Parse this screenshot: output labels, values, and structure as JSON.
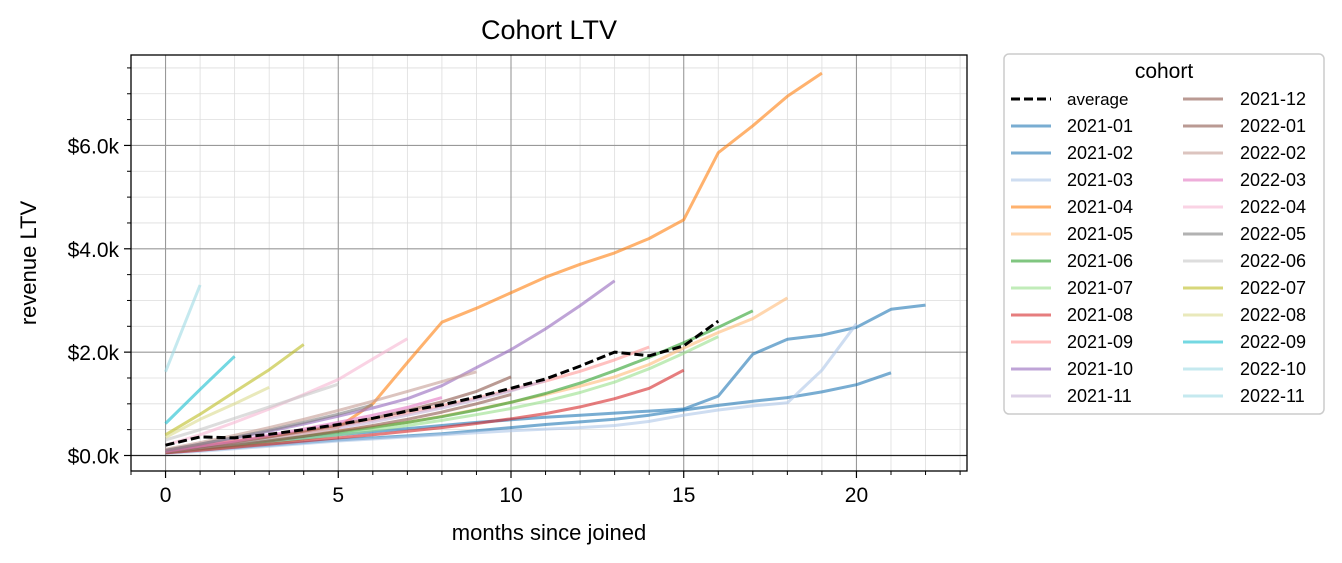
{
  "chart_data": {
    "type": "line",
    "title": "Cohort LTV",
    "xlabel": "months since joined",
    "ylabel": "revenue LTV",
    "xlim": [
      -1,
      23.2
    ],
    "ylim": [
      -300,
      7750
    ],
    "xticks": [
      0,
      5,
      10,
      15,
      20
    ],
    "xtick_labels": [
      "0",
      "5",
      "10",
      "15",
      "20"
    ],
    "yticks": [
      0,
      2000,
      4000,
      6000
    ],
    "ytick_labels": [
      "$0.0k",
      "$2.0k",
      "$4.0k",
      "$6.0k"
    ],
    "grid": true,
    "legend_title": "cohort",
    "legend_position": "outside-right",
    "series": [
      {
        "name": "average",
        "color": "#000000",
        "dashed": true,
        "opacity": 1,
        "x": [
          0,
          1,
          2,
          3,
          4,
          5,
          6,
          7,
          8,
          9,
          10,
          11,
          12,
          13,
          14,
          15,
          16
        ],
        "y": [
          200,
          360,
          340,
          410,
          500,
          600,
          720,
          860,
          980,
          1130,
          1300,
          1480,
          1730,
          2000,
          1930,
          2120,
          2600
        ]
      },
      {
        "name": "2021-01",
        "color": "#1f77b4",
        "opacity": 0.6,
        "x": [
          0,
          1,
          2,
          3,
          4,
          5,
          6,
          7,
          8,
          9,
          10,
          11,
          12,
          13,
          14,
          15,
          16,
          17,
          18,
          19,
          20,
          21,
          22
        ],
        "y": [
          50,
          120,
          190,
          260,
          330,
          400,
          460,
          520,
          580,
          640,
          690,
          740,
          780,
          820,
          860,
          900,
          1150,
          1960,
          2250,
          2330,
          2480,
          2830,
          2910
        ]
      },
      {
        "name": "2021-02",
        "color": "#1f77b4",
        "opacity": 0.6,
        "x": [
          0,
          1,
          2,
          3,
          4,
          5,
          6,
          7,
          8,
          9,
          10,
          11,
          12,
          13,
          14,
          15,
          16,
          17,
          18,
          19,
          20,
          21
        ],
        "y": [
          50,
          100,
          150,
          200,
          250,
          300,
          340,
          380,
          420,
          480,
          540,
          600,
          650,
          700,
          780,
          880,
          970,
          1050,
          1120,
          1230,
          1370,
          1600
        ]
      },
      {
        "name": "2021-03",
        "color": "#aec7e8",
        "opacity": 0.6,
        "x": [
          0,
          1,
          2,
          3,
          4,
          5,
          6,
          7,
          8,
          9,
          10,
          11,
          12,
          13,
          14,
          15,
          16,
          17,
          18,
          19,
          20
        ],
        "y": [
          40,
          80,
          130,
          180,
          230,
          280,
          320,
          360,
          400,
          440,
          480,
          510,
          540,
          580,
          660,
          780,
          880,
          960,
          1020,
          1650,
          2550
        ]
      },
      {
        "name": "2021-04",
        "color": "#ff7f0e",
        "opacity": 0.6,
        "x": [
          0,
          1,
          2,
          3,
          4,
          5,
          6,
          7,
          8,
          9,
          10,
          11,
          12,
          13,
          14,
          15,
          16,
          17,
          18,
          19
        ],
        "y": [
          100,
          200,
          280,
          360,
          450,
          550,
          1000,
          1800,
          2580,
          2850,
          3150,
          3450,
          3700,
          3920,
          4200,
          4560,
          5860,
          6380,
          6950,
          7400
        ]
      },
      {
        "name": "2021-05",
        "color": "#ffbb78",
        "opacity": 0.6,
        "x": [
          0,
          1,
          2,
          3,
          4,
          5,
          6,
          7,
          8,
          9,
          10,
          11,
          12,
          13,
          14,
          15,
          16,
          17,
          18
        ],
        "y": [
          80,
          160,
          240,
          320,
          400,
          480,
          560,
          640,
          760,
          890,
          1030,
          1180,
          1340,
          1520,
          1760,
          2080,
          2380,
          2650,
          3050
        ]
      },
      {
        "name": "2021-06",
        "color": "#2ca02c",
        "opacity": 0.6,
        "x": [
          0,
          1,
          2,
          3,
          4,
          5,
          6,
          7,
          8,
          9,
          10,
          11,
          12,
          13,
          14,
          15,
          16,
          17
        ],
        "y": [
          70,
          140,
          210,
          290,
          370,
          450,
          540,
          640,
          750,
          880,
          1030,
          1200,
          1400,
          1640,
          1900,
          2180,
          2480,
          2800
        ]
      },
      {
        "name": "2021-07",
        "color": "#98df8a",
        "opacity": 0.6,
        "x": [
          0,
          1,
          2,
          3,
          4,
          5,
          6,
          7,
          8,
          9,
          10,
          11,
          12,
          13,
          14,
          15,
          16
        ],
        "y": [
          60,
          120,
          180,
          250,
          320,
          400,
          490,
          580,
          680,
          790,
          910,
          1050,
          1220,
          1420,
          1680,
          1980,
          2300
        ]
      },
      {
        "name": "2021-08",
        "color": "#d62728",
        "opacity": 0.6,
        "x": [
          0,
          1,
          2,
          3,
          4,
          5,
          6,
          7,
          8,
          9,
          10,
          11,
          12,
          13,
          14,
          15
        ],
        "y": [
          50,
          100,
          160,
          220,
          280,
          340,
          400,
          470,
          540,
          620,
          710,
          810,
          940,
          1100,
          1300,
          1650
        ]
      },
      {
        "name": "2021-09",
        "color": "#ff9896",
        "opacity": 0.6,
        "x": [
          0,
          1,
          2,
          3,
          4,
          5,
          6,
          7,
          8,
          9,
          10,
          11,
          12,
          13,
          14
        ],
        "y": [
          80,
          170,
          260,
          360,
          460,
          570,
          690,
          820,
          960,
          1110,
          1270,
          1440,
          1630,
          1850,
          2100
        ]
      },
      {
        "name": "2021-10",
        "color": "#9467bd",
        "opacity": 0.6,
        "x": [
          0,
          1,
          2,
          3,
          4,
          5,
          6,
          7,
          8,
          9,
          10,
          11,
          12,
          13
        ],
        "y": [
          100,
          220,
          340,
          470,
          610,
          760,
          920,
          1100,
          1350,
          1700,
          2050,
          2450,
          2900,
          3380
        ]
      },
      {
        "name": "2021-11",
        "color": "#c5b0d5",
        "opacity": 0.6,
        "x": [
          0,
          1,
          2,
          3,
          4,
          5,
          6,
          7,
          8,
          9,
          10,
          11
        ],
        "y": [
          70,
          150,
          230,
          320,
          420,
          530,
          650,
          780,
          920,
          1080,
          1250,
          1450
        ]
      },
      {
        "name": "2021-12",
        "color": "#8c564b",
        "opacity": 0.6,
        "x": [
          0,
          1,
          2,
          3,
          4,
          5,
          6,
          7,
          8,
          9,
          10
        ],
        "y": [
          80,
          170,
          260,
          360,
          470,
          590,
          720,
          870,
          1040,
          1240,
          1520
        ]
      },
      {
        "name": "2022-01",
        "color": "#8c564b",
        "opacity": 0.6,
        "x": [
          0,
          1,
          2,
          3,
          4,
          5,
          6,
          7,
          8,
          9,
          10
        ],
        "y": [
          60,
          130,
          200,
          280,
          370,
          470,
          580,
          700,
          840,
          1000,
          1180
        ]
      },
      {
        "name": "2022-02",
        "color": "#c49c94",
        "opacity": 0.6,
        "x": [
          0,
          1,
          2,
          3,
          4,
          5,
          6,
          7,
          8,
          9
        ],
        "y": [
          120,
          250,
          390,
          540,
          700,
          870,
          1050,
          1240,
          1430,
          1620
        ]
      },
      {
        "name": "2022-03",
        "color": "#e377c2",
        "opacity": 0.6,
        "x": [
          0,
          1,
          2,
          3,
          4,
          5,
          6,
          7,
          8
        ],
        "y": [
          80,
          180,
          280,
          390,
          510,
          640,
          780,
          930,
          1120
        ]
      },
      {
        "name": "2022-04",
        "color": "#f7b6d2",
        "opacity": 0.6,
        "x": [
          0,
          1,
          2,
          3,
          4,
          5,
          6,
          7
        ],
        "y": [
          200,
          400,
          640,
          900,
          1180,
          1470,
          1870,
          2260
        ]
      },
      {
        "name": "2022-05",
        "color": "#7f7f7f",
        "opacity": 0.6,
        "x": [
          0,
          1,
          2,
          3,
          4,
          5,
          6
        ],
        "y": [
          100,
          220,
          350,
          490,
          640,
          800,
          980
        ]
      },
      {
        "name": "2022-06",
        "color": "#c7c7c7",
        "opacity": 0.6,
        "x": [
          0,
          1,
          2,
          3,
          4,
          5
        ],
        "y": [
          300,
          500,
          720,
          940,
          1160,
          1380
        ]
      },
      {
        "name": "2022-07",
        "color": "#bcbd22",
        "opacity": 0.6,
        "x": [
          0,
          1,
          2,
          3,
          4
        ],
        "y": [
          400,
          800,
          1230,
          1660,
          2150
        ]
      },
      {
        "name": "2022-08",
        "color": "#dbdb8d",
        "opacity": 0.6,
        "x": [
          0,
          1,
          2,
          3
        ],
        "y": [
          350,
          700,
          1000,
          1320
        ]
      },
      {
        "name": "2022-09",
        "color": "#17becf",
        "opacity": 0.6,
        "x": [
          0,
          1,
          2
        ],
        "y": [
          620,
          1280,
          1920
        ]
      },
      {
        "name": "2022-10",
        "color": "#9edae5",
        "opacity": 0.6,
        "x": [
          0,
          1
        ],
        "y": [
          1620,
          3300
        ]
      },
      {
        "name": "2022-11",
        "color": "#9edae5",
        "opacity": 0.6,
        "x": [
          0
        ],
        "y": [
          1650
        ]
      }
    ]
  }
}
